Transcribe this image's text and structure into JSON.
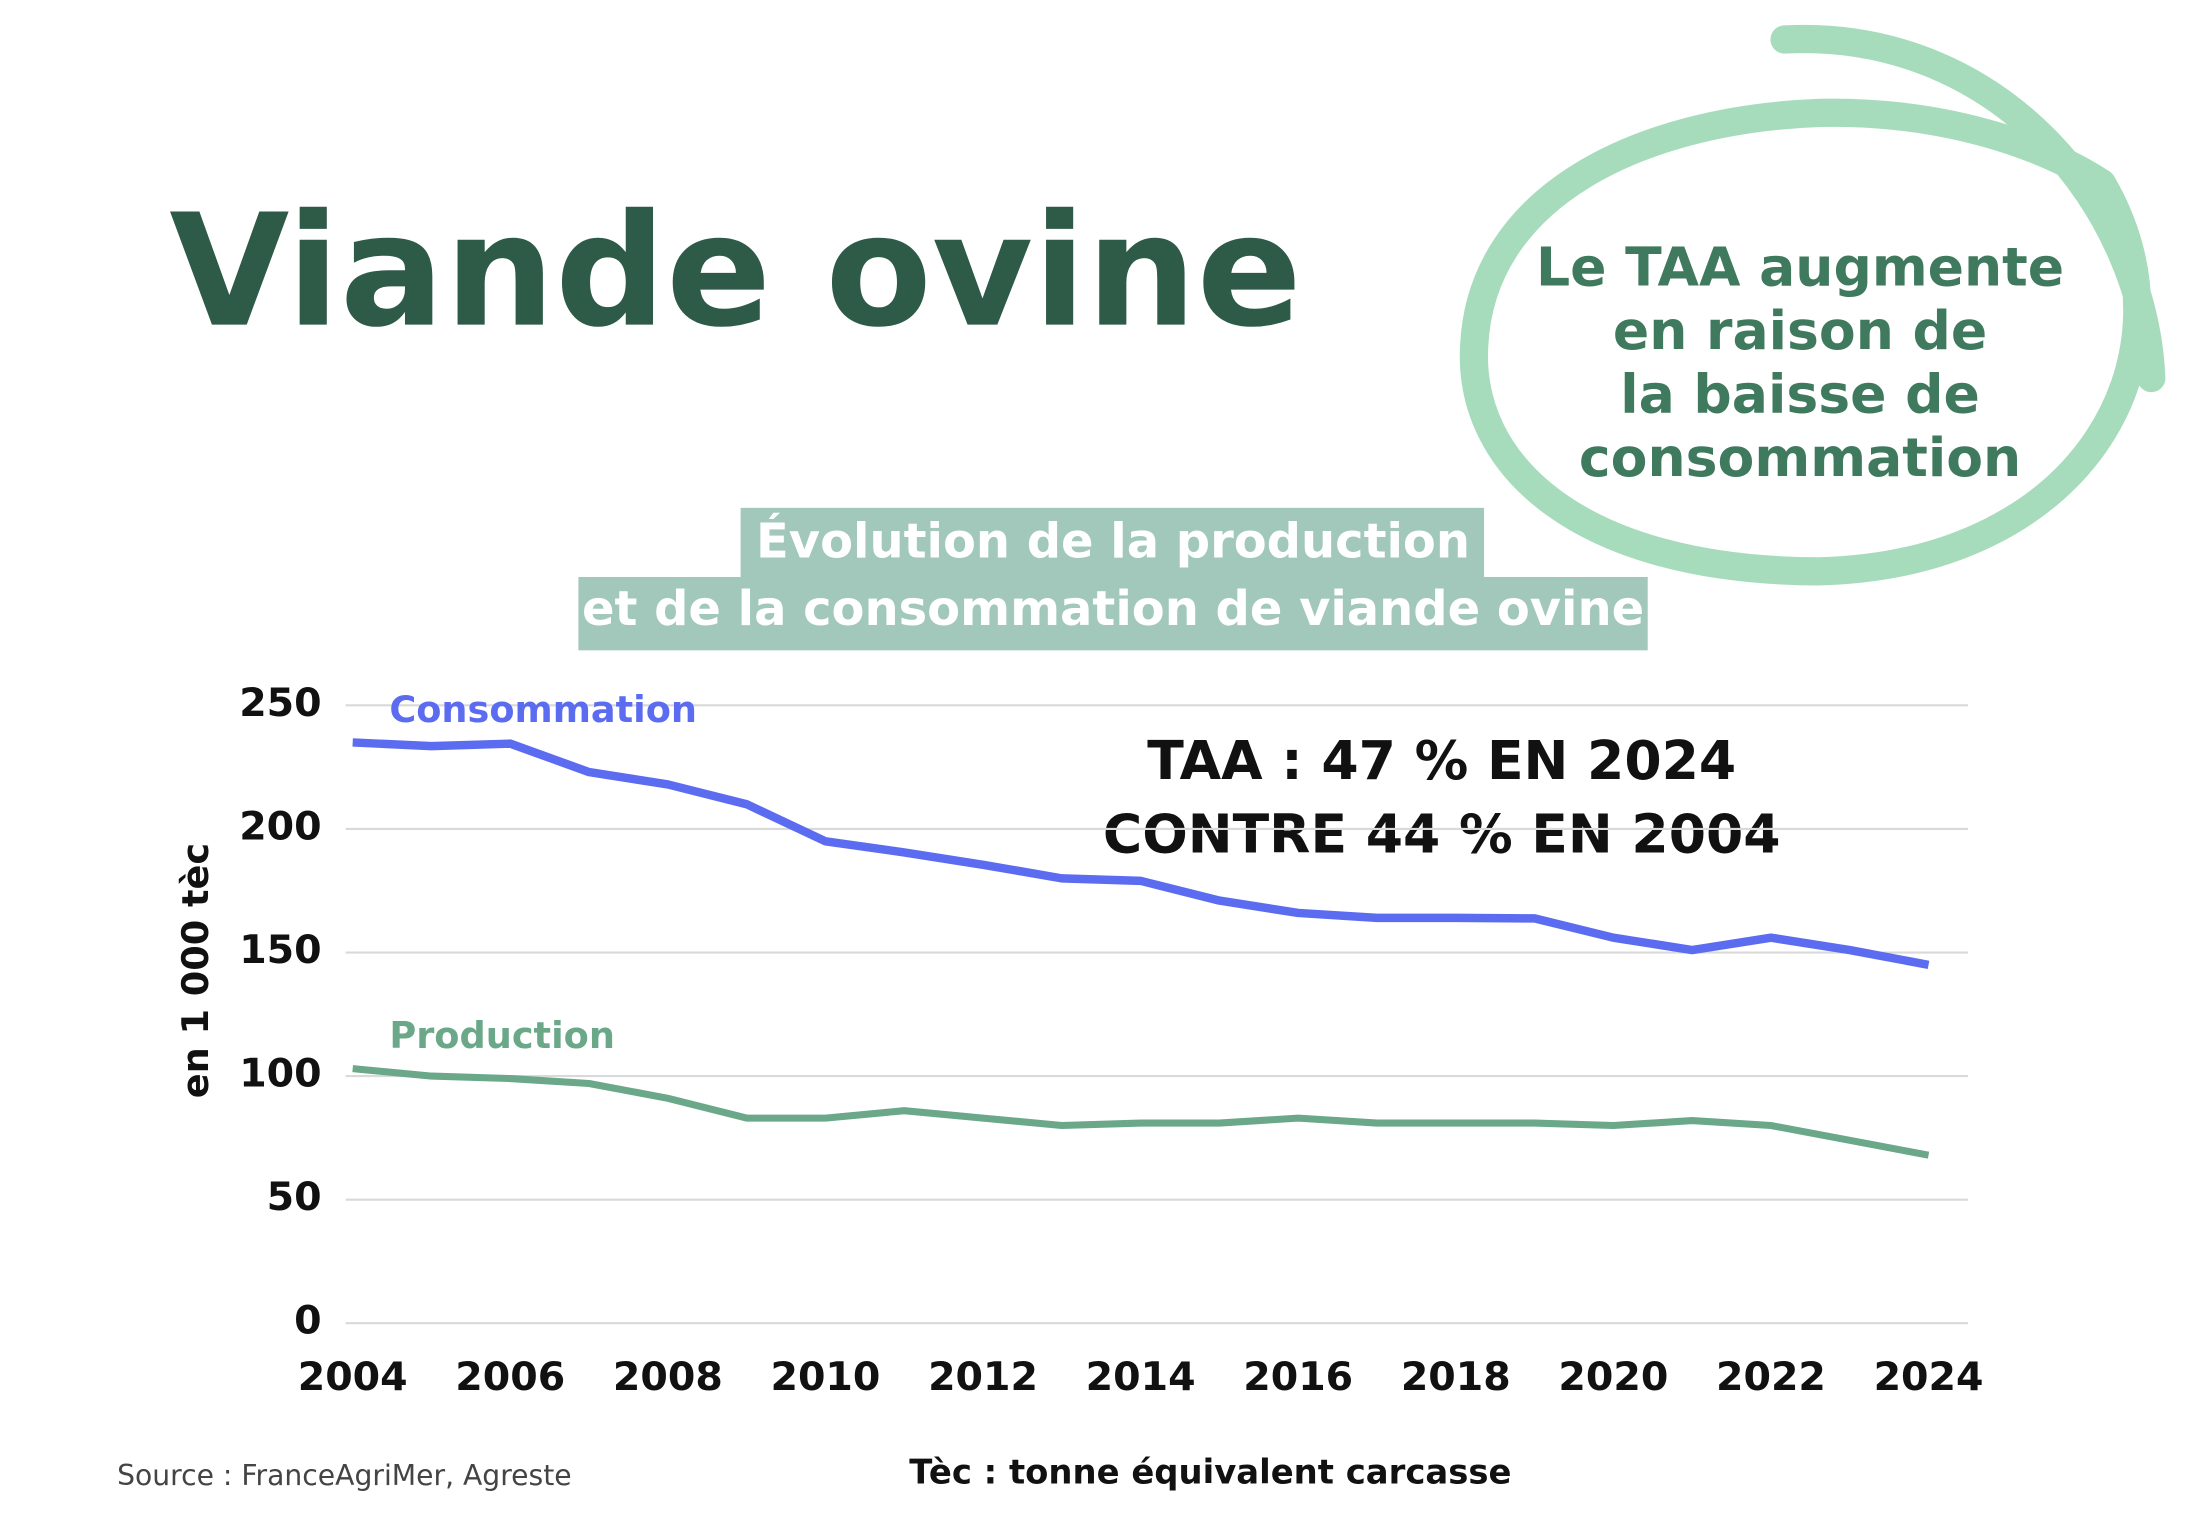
{
  "chart_data": {
    "type": "line",
    "heading": "Viande ovine",
    "callout": [
      "Le TAA augmente",
      "en raison de",
      "la baisse de",
      "consommation"
    ],
    "title": [
      "Évolution de la production",
      "et de la consommation de viande ovine"
    ],
    "y_label": "en 1 000 tèc",
    "annotation": [
      "TAA : 47 % EN 2024",
      "CONTRE 44 % EN 2004"
    ],
    "source": "Source : FranceAgriMer, Agreste",
    "footnote": "Tèc : tonne équivalent carcasse",
    "x": [
      2004,
      2005,
      2006,
      2007,
      2008,
      2009,
      2010,
      2011,
      2012,
      2013,
      2014,
      2015,
      2016,
      2017,
      2018,
      2019,
      2020,
      2021,
      2022,
      2023,
      2024
    ],
    "series": [
      {
        "name": "Consommation",
        "color": "#5b6cf0",
        "values": [
          235,
          233.5,
          234.5,
          223,
          218,
          210,
          195,
          190.5,
          185.5,
          180,
          179,
          171,
          166,
          164,
          164,
          163.8,
          156,
          151,
          156,
          151,
          145
        ]
      },
      {
        "name": "Production",
        "color": "#6aa889",
        "values": [
          103,
          100,
          99,
          97,
          91,
          83,
          83,
          86,
          83,
          80,
          81,
          81,
          83,
          81,
          81,
          81,
          80,
          82,
          80,
          74,
          68
        ]
      }
    ],
    "xlim": [
      2004,
      2024.5
    ],
    "xticks": [
      2004,
      2006,
      2008,
      2010,
      2012,
      2014,
      2016,
      2018,
      2020,
      2022,
      2024
    ],
    "ylim": [
      0,
      250
    ],
    "yticks": [
      0,
      50,
      100,
      150,
      200,
      250
    ],
    "grid": true
  }
}
